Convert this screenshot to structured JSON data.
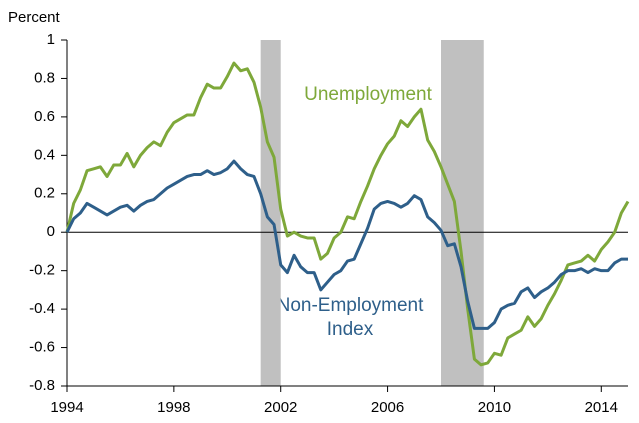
{
  "chart_data": {
    "type": "line",
    "y_axis_label": "Percent",
    "x": [
      1994,
      1994.25,
      1994.5,
      1994.75,
      1995,
      1995.25,
      1995.5,
      1995.75,
      1996,
      1996.25,
      1996.5,
      1996.75,
      1997,
      1997.25,
      1997.5,
      1997.75,
      1998,
      1998.25,
      1998.5,
      1998.75,
      1999,
      1999.25,
      1999.5,
      1999.75,
      2000,
      2000.25,
      2000.5,
      2000.75,
      2001,
      2001.25,
      2001.5,
      2001.75,
      2002,
      2002.25,
      2002.5,
      2002.75,
      2003,
      2003.25,
      2003.5,
      2003.75,
      2004,
      2004.25,
      2004.5,
      2004.75,
      2005,
      2005.25,
      2005.5,
      2005.75,
      2006,
      2006.25,
      2006.5,
      2006.75,
      2007,
      2007.25,
      2007.5,
      2007.75,
      2008,
      2008.25,
      2008.5,
      2008.75,
      2009,
      2009.25,
      2009.5,
      2009.75,
      2010,
      2010.25,
      2010.5,
      2010.75,
      2011,
      2011.25,
      2011.5,
      2011.75,
      2012,
      2012.25,
      2012.5,
      2012.75,
      2013,
      2013.25,
      2013.5,
      2013.75,
      2014,
      2014.25,
      2014.5,
      2014.75,
      2015
    ],
    "series": [
      {
        "name": "Unemployment",
        "color": "#7ea83a",
        "values": [
          0.0,
          0.15,
          0.22,
          0.32,
          0.33,
          0.34,
          0.29,
          0.35,
          0.35,
          0.41,
          0.34,
          0.4,
          0.44,
          0.47,
          0.45,
          0.52,
          0.57,
          0.59,
          0.61,
          0.61,
          0.7,
          0.77,
          0.75,
          0.75,
          0.81,
          0.88,
          0.84,
          0.85,
          0.78,
          0.65,
          0.47,
          0.39,
          0.12,
          -0.02,
          0.0,
          -0.02,
          -0.03,
          -0.03,
          -0.14,
          -0.11,
          -0.03,
          0.0,
          0.08,
          0.07,
          0.16,
          0.24,
          0.33,
          0.4,
          0.46,
          0.5,
          0.58,
          0.55,
          0.6,
          0.64,
          0.48,
          0.42,
          0.34,
          0.25,
          0.16,
          -0.1,
          -0.4,
          -0.66,
          -0.69,
          -0.68,
          -0.63,
          -0.64,
          -0.55,
          -0.53,
          -0.51,
          -0.44,
          -0.49,
          -0.45,
          -0.38,
          -0.32,
          -0.25,
          -0.17,
          -0.16,
          -0.15,
          -0.12,
          -0.15,
          -0.09,
          -0.05,
          0.0,
          0.1,
          0.16
        ]
      },
      {
        "name": "Non-Employment Index",
        "color": "#2e5f8a",
        "values": [
          0.0,
          0.07,
          0.1,
          0.15,
          0.13,
          0.11,
          0.09,
          0.11,
          0.13,
          0.14,
          0.11,
          0.14,
          0.16,
          0.17,
          0.2,
          0.23,
          0.25,
          0.27,
          0.29,
          0.3,
          0.3,
          0.32,
          0.3,
          0.31,
          0.33,
          0.37,
          0.33,
          0.3,
          0.29,
          0.2,
          0.08,
          0.04,
          -0.17,
          -0.21,
          -0.12,
          -0.18,
          -0.21,
          -0.21,
          -0.3,
          -0.26,
          -0.22,
          -0.2,
          -0.15,
          -0.14,
          -0.06,
          0.02,
          0.12,
          0.15,
          0.16,
          0.15,
          0.13,
          0.15,
          0.19,
          0.17,
          0.08,
          0.05,
          0.01,
          -0.07,
          -0.06,
          -0.18,
          -0.36,
          -0.5,
          -0.5,
          -0.5,
          -0.47,
          -0.4,
          -0.38,
          -0.37,
          -0.31,
          -0.29,
          -0.34,
          -0.31,
          -0.29,
          -0.26,
          -0.22,
          -0.2,
          -0.2,
          -0.19,
          -0.21,
          -0.19,
          -0.2,
          -0.2,
          -0.16,
          -0.14,
          -0.14
        ]
      }
    ],
    "label_lines": [
      "Unemployment",
      "Non-Employment",
      "Index"
    ],
    "shaded_regions": [
      [
        2001.25,
        2002.0
      ],
      [
        2008.0,
        2009.6
      ]
    ],
    "shade_color": "#c0c0c0",
    "xlim": [
      1994,
      2015
    ],
    "xticks": [
      1994,
      1998,
      2002,
      2006,
      2010,
      2014
    ],
    "ylim": [
      -0.8,
      1
    ],
    "yticks": [
      1,
      0.8,
      0.6,
      0.4,
      0.2,
      0,
      -0.2,
      -0.4,
      -0.6,
      -0.8
    ]
  }
}
